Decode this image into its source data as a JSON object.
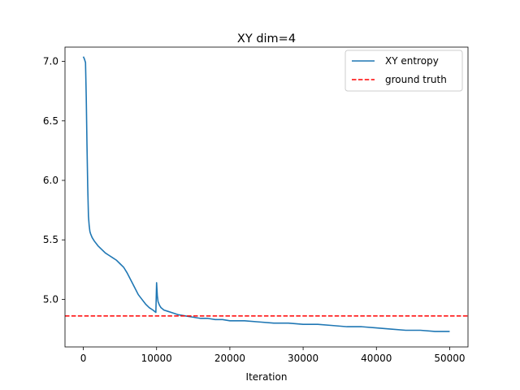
{
  "chart_data": {
    "type": "line",
    "title": "XY dim=4",
    "xlabel": "Iteration",
    "ylabel": "",
    "xlim": [
      -2500,
      52500
    ],
    "ylim": [
      4.6,
      7.12
    ],
    "xticks": [
      0,
      10000,
      20000,
      30000,
      40000,
      50000
    ],
    "xtick_labels": [
      "0",
      "10000",
      "20000",
      "30000",
      "40000",
      "50000"
    ],
    "yticks": [
      5.0,
      5.5,
      6.0,
      6.5,
      7.0
    ],
    "ytick_labels": [
      "5.0",
      "5.5",
      "6.0",
      "6.5",
      "7.0"
    ],
    "grid": false,
    "legend_position": "upper-right",
    "series": [
      {
        "name": "XY entropy",
        "color": "#1f77b4",
        "style": "solid",
        "x": [
          0,
          150,
          300,
          400,
          500,
          600,
          700,
          800,
          900,
          1000,
          1200,
          1500,
          2000,
          2500,
          3000,
          3500,
          4000,
          4500,
          5000,
          5500,
          6000,
          6500,
          7000,
          7500,
          8000,
          8500,
          9000,
          9500,
          9900,
          10000,
          10100,
          10200,
          10400,
          10600,
          11000,
          11500,
          12000,
          13000,
          14000,
          15000,
          16000,
          17000,
          18000,
          19000,
          20000,
          22000,
          24000,
          26000,
          28000,
          30000,
          32000,
          34000,
          36000,
          38000,
          40000,
          42000,
          44000,
          46000,
          48000,
          50000
        ],
        "y": [
          7.04,
          7.02,
          6.99,
          6.7,
          6.3,
          5.95,
          5.7,
          5.62,
          5.57,
          5.55,
          5.52,
          5.49,
          5.45,
          5.42,
          5.39,
          5.37,
          5.35,
          5.33,
          5.3,
          5.27,
          5.22,
          5.16,
          5.1,
          5.04,
          5.0,
          4.96,
          4.93,
          4.91,
          4.89,
          5.14,
          5.03,
          4.98,
          4.95,
          4.93,
          4.91,
          4.9,
          4.89,
          4.87,
          4.86,
          4.85,
          4.84,
          4.84,
          4.83,
          4.83,
          4.82,
          4.82,
          4.81,
          4.8,
          4.8,
          4.79,
          4.79,
          4.78,
          4.77,
          4.77,
          4.76,
          4.75,
          4.74,
          4.74,
          4.73,
          4.73
        ]
      },
      {
        "name": "ground truth",
        "color": "#ff0000",
        "style": "dashed",
        "y_constant": 4.86
      }
    ]
  }
}
